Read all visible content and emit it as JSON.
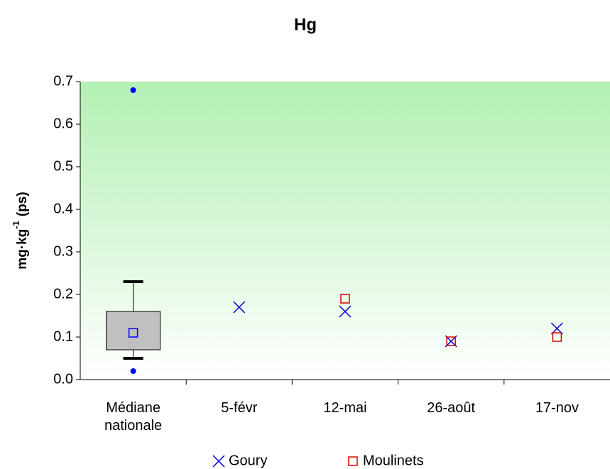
{
  "chart_data": {
    "type": "scatter",
    "title": "Hg",
    "y_label": {
      "text": "mg·kg",
      "superscript": "-1",
      "suffix": "(ps)"
    },
    "categories": [
      "Médiane nationale",
      "5-févr",
      "12-mai",
      "26-août",
      "17-nov"
    ],
    "box": {
      "whislo": 0.05,
      "q1": 0.07,
      "med": 0.11,
      "q3": 0.16,
      "whishi": 0.23,
      "fliers": [
        0.02,
        0.68
      ],
      "fill": "#c0c0c0",
      "med_color": "#0000ff",
      "flier_color": "#0000ff"
    },
    "series": [
      {
        "name": "Goury",
        "color": "#0000cc",
        "marker": "x",
        "values": [
          null,
          0.17,
          0.16,
          0.09,
          0.12
        ]
      },
      {
        "name": "Moulinets",
        "color": "#dd0000",
        "marker": "square",
        "values": [
          null,
          null,
          0.19,
          0.09,
          0.1
        ]
      }
    ],
    "ylim": [
      0,
      0.7
    ],
    "yticks": [
      {
        "value": 0,
        "label": "0.0"
      },
      0.1,
      0.2,
      0.3,
      0.4,
      0.5,
      0.6,
      0.7
    ],
    "grid": false,
    "legend": "bottom"
  }
}
